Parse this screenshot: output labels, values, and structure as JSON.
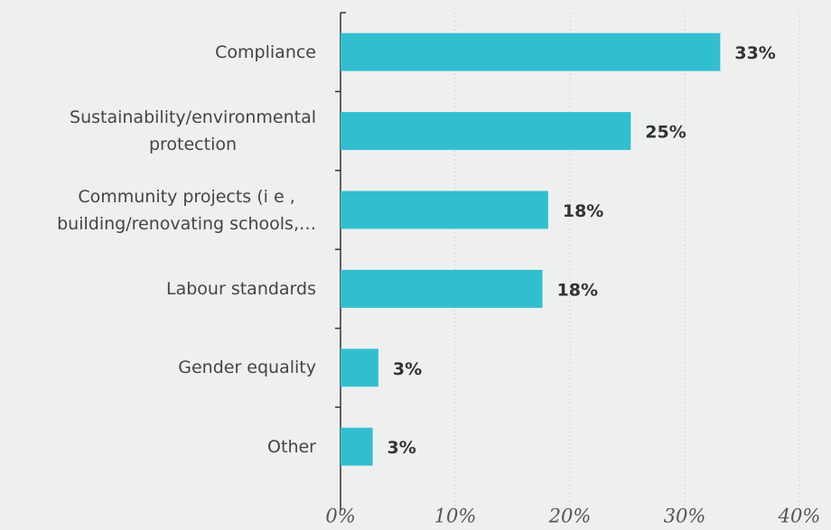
{
  "chart_data": {
    "type": "bar",
    "orientation": "horizontal",
    "categories": [
      "Compliance",
      "Sustainability/environmental\nprotection",
      "Community projects (i e ,\nbuilding/renovating schools,…",
      "Labour standards",
      "Gender equality",
      "Other"
    ],
    "values": [
      33.1,
      25.3,
      18.1,
      17.6,
      3.3,
      2.8
    ],
    "value_labels": [
      "33%",
      "25%",
      "18%",
      "18%",
      "3%",
      "3%"
    ],
    "color": "#31bfcf",
    "xlim": [
      0,
      40
    ],
    "xticks": [
      {
        "value": 0,
        "label": "0%"
      },
      {
        "value": 10,
        "label": "10%"
      },
      {
        "value": 20,
        "label": "20%"
      },
      {
        "value": 30,
        "label": "30%"
      },
      {
        "value": 40,
        "label": "40%"
      }
    ],
    "grid": true
  }
}
